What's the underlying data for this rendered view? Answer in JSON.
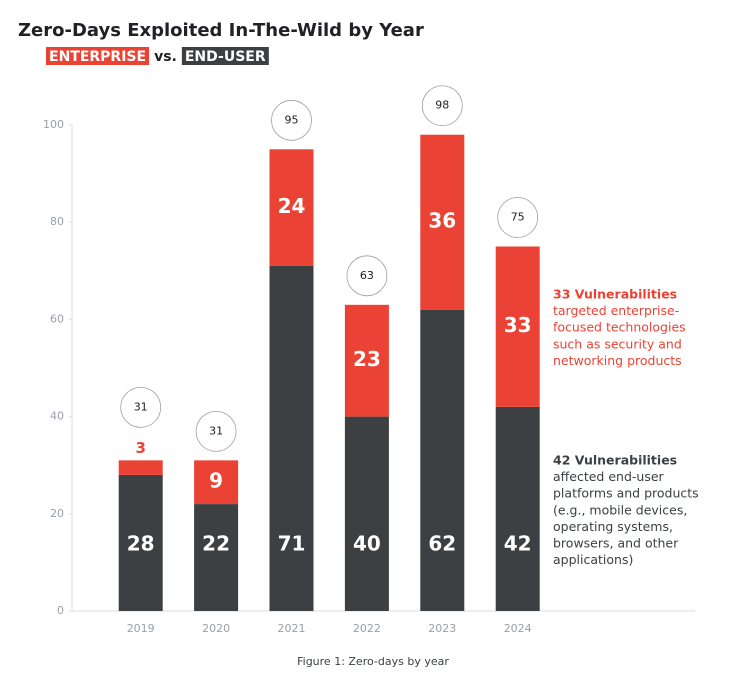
{
  "chart_data": {
    "type": "stacked_bar",
    "title": "Zero-Days Exploited In-The-Wild by Year",
    "subtitle_connector": "vs.",
    "categories": [
      "2019",
      "2020",
      "2021",
      "2022",
      "2023",
      "2024"
    ],
    "series": [
      {
        "name": "END-USER",
        "color": "#3c4043",
        "values": [
          28,
          22,
          71,
          40,
          62,
          42
        ]
      },
      {
        "name": "ENTERPRISE",
        "color": "#ea4335",
        "values": [
          3,
          9,
          24,
          23,
          36,
          33
        ]
      }
    ],
    "totals": [
      31,
      31,
      95,
      63,
      98,
      75
    ],
    "ylim": [
      0,
      100
    ],
    "yticks": [
      0,
      20,
      40,
      60,
      80,
      100
    ],
    "grid": false,
    "annotations": [
      {
        "title": "33 Vulnerabilities",
        "color": "#ea4335",
        "lines": [
          "targeted enterprise-",
          "focused technologies",
          "such as security and",
          "networking products"
        ]
      },
      {
        "title": "42 Vulnerabilities",
        "color": "#3c4043",
        "lines": [
          "affected end-user",
          "platforms and products",
          "(e.g., mobile devices,",
          "operating systems,",
          "browsers, and other",
          "applications)"
        ]
      }
    ],
    "caption": "Figure 1: Zero-days by year"
  }
}
